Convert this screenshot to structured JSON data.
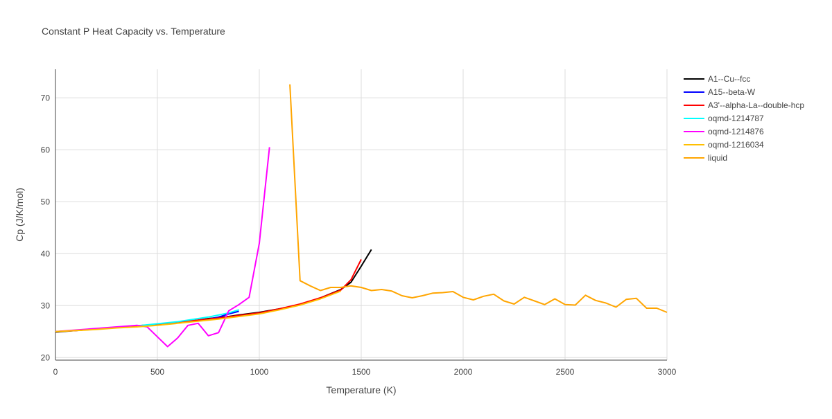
{
  "chart_data": {
    "type": "line",
    "title": "Constant P Heat Capacity vs. Temperature",
    "xlabel": "Temperature (K)",
    "ylabel": "Cp (J/K/mol)",
    "xlim": [
      0,
      3000
    ],
    "ylim": [
      19.5,
      75.5
    ],
    "x_ticks": [
      0,
      500,
      1000,
      1500,
      2000,
      2500,
      3000
    ],
    "y_ticks": [
      20,
      30,
      40,
      50,
      60,
      70
    ],
    "grid": true,
    "legend_position": "top-right",
    "series": [
      {
        "name": "A1--Cu--fcc",
        "color": "#000000",
        "x": [
          0,
          100,
          200,
          300,
          400,
          500,
          600,
          700,
          750,
          800,
          850,
          900,
          1000,
          1100,
          1200,
          1250,
          1300,
          1350,
          1400,
          1450,
          1500,
          1550
        ],
        "y": [
          24.9,
          25.2,
          25.5,
          25.8,
          26.1,
          26.4,
          26.8,
          27.2,
          27.5,
          27.7,
          27.9,
          28.2,
          28.7,
          29.4,
          30.2,
          30.8,
          31.5,
          32.3,
          33.1,
          34.5,
          37.6,
          40.8
        ]
      },
      {
        "name": "A15--beta-W",
        "color": "#0000ff",
        "x": [
          750,
          800,
          850,
          900
        ],
        "y": [
          27.4,
          27.8,
          28.4,
          28.9
        ]
      },
      {
        "name": "A3'--alpha-La--double-hcp",
        "color": "#ff0000",
        "x": [
          0,
          100,
          200,
          300,
          400,
          500,
          600,
          700,
          800,
          900,
          1000,
          1100,
          1200,
          1300,
          1400,
          1450,
          1500
        ],
        "y": [
          25.0,
          25.2,
          25.5,
          25.8,
          26.1,
          26.4,
          26.8,
          27.2,
          27.6,
          28.1,
          28.6,
          29.4,
          30.3,
          31.5,
          33.0,
          35.0,
          38.9
        ]
      },
      {
        "name": "oqmd-1214787",
        "color": "#00ffff",
        "x": [
          400,
          450,
          500,
          550,
          600,
          650,
          700,
          750,
          800,
          850,
          900
        ],
        "y": [
          26.1,
          26.3,
          26.5,
          26.7,
          26.9,
          27.2,
          27.5,
          27.8,
          28.2,
          28.6,
          29.2
        ]
      },
      {
        "name": "oqmd-1214876",
        "color": "#ff00ff",
        "x": [
          0,
          100,
          200,
          300,
          400,
          450,
          500,
          550,
          600,
          650,
          700,
          750,
          800,
          850,
          900,
          950,
          1000,
          1050
        ],
        "y": [
          25.0,
          25.3,
          25.6,
          25.9,
          26.2,
          25.9,
          24.0,
          22.1,
          23.8,
          26.2,
          26.6,
          24.2,
          24.8,
          29.0,
          30.2,
          31.6,
          42.0,
          60.5
        ]
      },
      {
        "name": "oqmd-1216034",
        "color": "#ffbf00",
        "x": [
          0,
          100,
          200,
          300,
          400,
          500,
          600,
          700,
          800,
          900,
          1000,
          1100,
          1200,
          1300,
          1400
        ],
        "y": [
          25.0,
          25.2,
          25.4,
          25.7,
          25.9,
          26.2,
          26.6,
          27.0,
          27.4,
          27.9,
          28.4,
          29.2,
          30.1,
          31.3,
          32.8
        ]
      },
      {
        "name": "liquid",
        "color": "#ffa500",
        "x": [
          1150,
          1200,
          1250,
          1300,
          1350,
          1400,
          1450,
          1500,
          1550,
          1600,
          1650,
          1700,
          1750,
          1800,
          1850,
          1900,
          1950,
          2000,
          2050,
          2100,
          2150,
          2200,
          2250,
          2300,
          2350,
          2400,
          2450,
          2500,
          2550,
          2600,
          2650,
          2700,
          2750,
          2800,
          2850,
          2900,
          2950,
          3000
        ],
        "y": [
          72.6,
          34.8,
          33.8,
          32.9,
          33.5,
          33.5,
          33.8,
          33.5,
          32.9,
          33.1,
          32.8,
          31.9,
          31.5,
          31.9,
          32.4,
          32.5,
          32.7,
          31.6,
          31.1,
          31.8,
          32.2,
          30.9,
          30.3,
          31.6,
          30.9,
          30.2,
          31.3,
          30.2,
          30.1,
          32.0,
          31.0,
          30.5,
          29.7,
          31.2,
          31.4,
          29.5,
          29.5,
          28.7
        ]
      }
    ]
  }
}
